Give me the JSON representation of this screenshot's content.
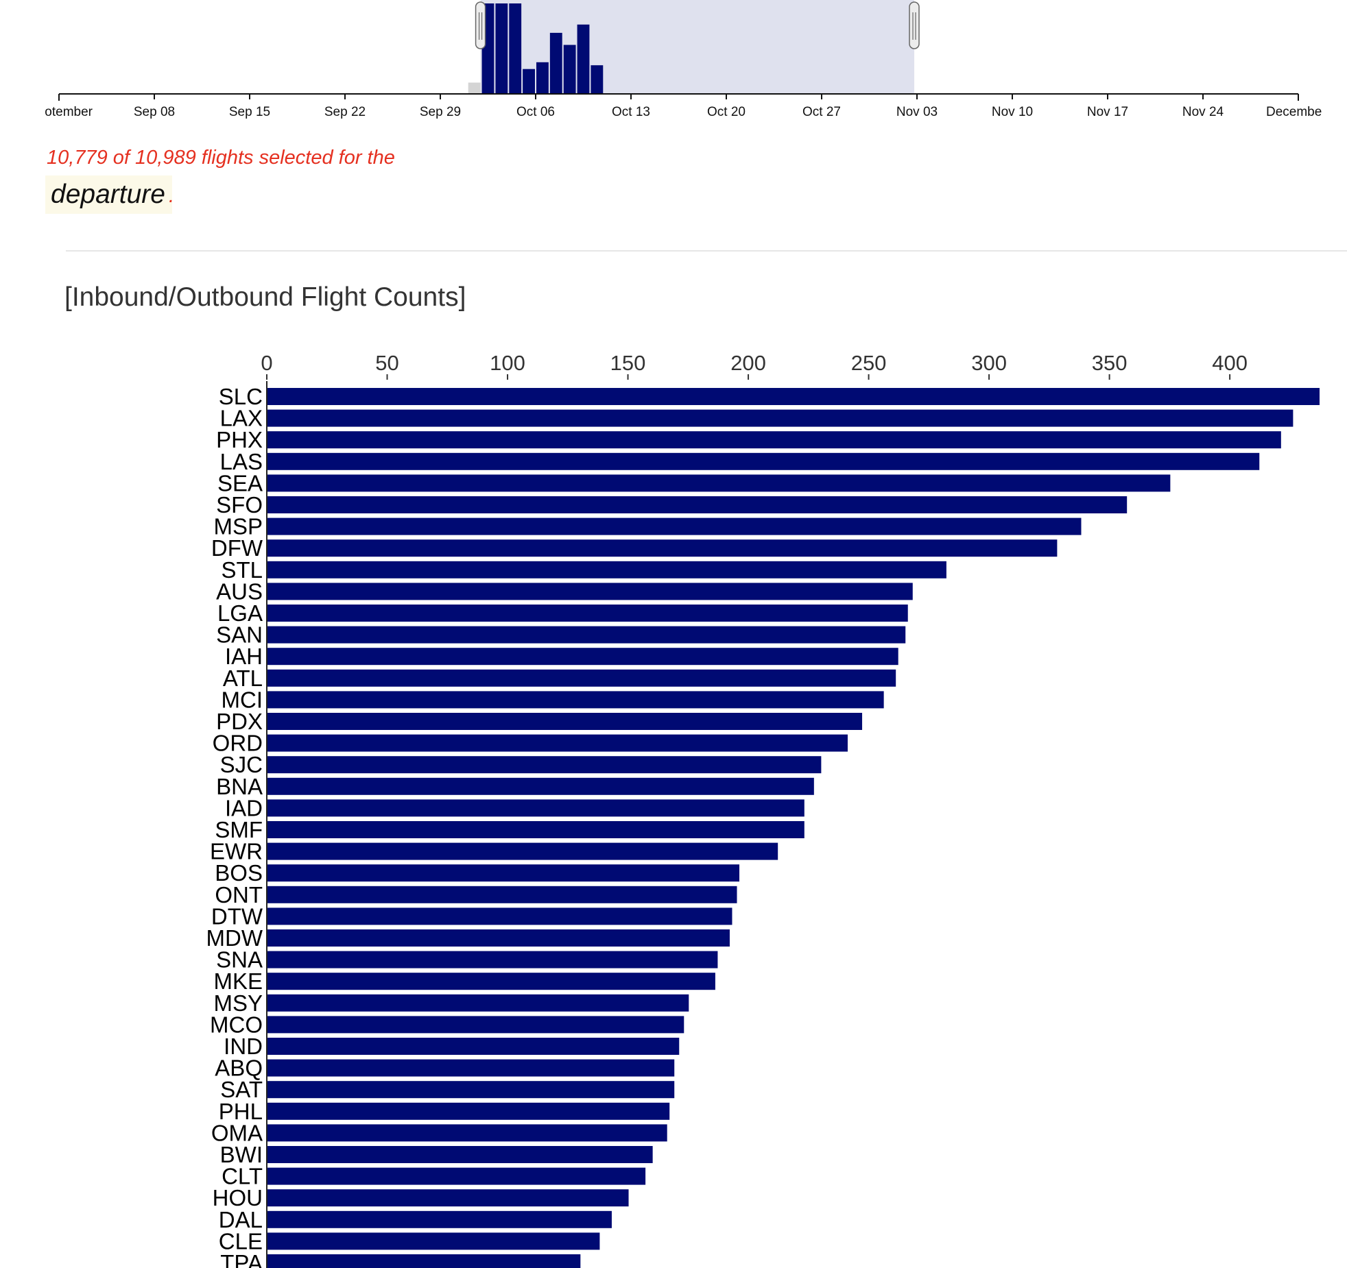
{
  "timeline": {
    "tick_labels": [
      "otember",
      "Sep 08",
      "Sep 15",
      "Sep 22",
      "Sep 29",
      "Oct 06",
      "Oct 13",
      "Oct 20",
      "Oct 27",
      "Nov 03",
      "Nov 10",
      "Nov 17",
      "Nov 24",
      "Decembe"
    ],
    "selection": {
      "start": "Oct 02",
      "end": "Nov 02"
    },
    "day_counts": [
      {
        "day": "Oct 01",
        "count": 0.15,
        "selected": false
      },
      {
        "day": "Oct 02",
        "count": 1.2,
        "selected": true
      },
      {
        "day": "Oct 03",
        "count": 1.2,
        "selected": true
      },
      {
        "day": "Oct 04",
        "count": 1.2,
        "selected": true
      },
      {
        "day": "Oct 05",
        "count": 0.33,
        "selected": true
      },
      {
        "day": "Oct 06",
        "count": 0.42,
        "selected": true
      },
      {
        "day": "Oct 07",
        "count": 0.81,
        "selected": true
      },
      {
        "day": "Oct 08",
        "count": 0.65,
        "selected": true
      },
      {
        "day": "Oct 09",
        "count": 0.92,
        "selected": true
      },
      {
        "day": "Oct 10",
        "count": 0.38,
        "selected": true
      }
    ],
    "colors": {
      "bar": "#000a73",
      "bar_unselected": "#d4d4d4",
      "selection": "#dfe1ee"
    }
  },
  "status": {
    "text": "10,779 of 10,989 flights selected for the",
    "color": "#e53020"
  },
  "dimension": {
    "label": "departure",
    "suffix": "."
  },
  "bar_section": {
    "title": "[Inbound/Outbound Flight Counts]"
  },
  "chart_data": {
    "type": "bar",
    "orientation": "horizontal",
    "title": "[Inbound/Outbound Flight Counts]",
    "xlabel": "",
    "ylabel": "",
    "xlim": [
      0,
      437
    ],
    "x_ticks": [
      0,
      50,
      100,
      150,
      200,
      250,
      300,
      350,
      400
    ],
    "categories": [
      "SLC",
      "LAX",
      "PHX",
      "LAS",
      "SEA",
      "SFO",
      "MSP",
      "DFW",
      "STL",
      "AUS",
      "LGA",
      "SAN",
      "IAH",
      "ATL",
      "MCI",
      "PDX",
      "ORD",
      "SJC",
      "BNA",
      "IAD",
      "SMF",
      "EWR",
      "BOS",
      "ONT",
      "DTW",
      "MDW",
      "SNA",
      "MKE",
      "MSY",
      "MCO",
      "IND",
      "ABQ",
      "SAT",
      "PHL",
      "OMA",
      "BWI",
      "CLT",
      "HOU",
      "DAL",
      "CLE",
      "TPA"
    ],
    "values": [
      437,
      426,
      421,
      412,
      375,
      357,
      338,
      328,
      282,
      268,
      266,
      265,
      262,
      261,
      256,
      247,
      241,
      230,
      227,
      223,
      223,
      212,
      196,
      195,
      193,
      192,
      187,
      186,
      175,
      173,
      171,
      169,
      169,
      167,
      166,
      160,
      157,
      150,
      143,
      138,
      130
    ],
    "color": "#000a73",
    "grid": false
  }
}
